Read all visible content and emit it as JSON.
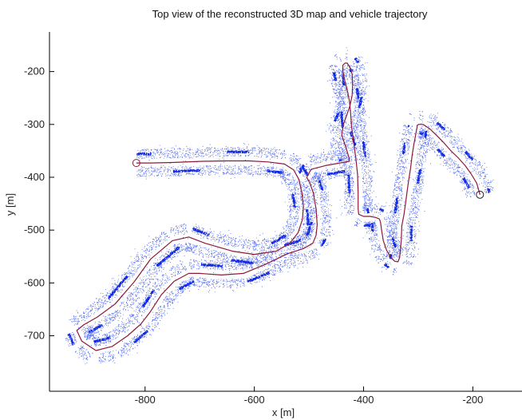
{
  "chart_data": {
    "type": "scatter",
    "title": "Top view of the reconstructed 3D map and vehicle trajectory",
    "xlabel": "x [m]",
    "ylabel": "y [m]",
    "xlim": [
      -975,
      -110
    ],
    "ylim": [
      -805,
      -125
    ],
    "y_axis_inverted": true,
    "grid": false,
    "x_ticks": [
      -800,
      -600,
      -400,
      -200
    ],
    "y_ticks": [
      -200,
      -300,
      -400,
      -500,
      -600,
      -700
    ],
    "x_tick_labels": [
      "-800",
      "-600",
      "-400",
      "-200"
    ],
    "y_tick_labels": [
      "-200",
      "-300",
      "-400",
      "-500",
      "-600",
      "-700"
    ],
    "colors": {
      "trajectory": "#8b1a3a",
      "map_points": "#1f3ee8",
      "axes": "#000000"
    },
    "series": [
      {
        "kind": "line",
        "x": [
          -816,
          -790,
          -750,
          -700,
          -650,
          -610,
          -575,
          -545,
          -528,
          -518,
          -513,
          -510,
          -512,
          -520,
          -535,
          -560,
          -600,
          -640,
          -690,
          -720,
          -750,
          -790,
          -820,
          -855,
          -888,
          -912,
          -925,
          -916,
          -890,
          -860,
          -832,
          -808,
          -790,
          -770,
          -747,
          -720,
          -700,
          -660,
          -620,
          -580,
          -540,
          -510,
          -493,
          -487,
          -485,
          -487,
          -492,
          -498,
          -504,
          -496,
          -470,
          -438,
          -426,
          -426,
          -432,
          -440,
          -437,
          -431,
          -425,
          -421,
          -420,
          -421,
          -425,
          -430,
          -434,
          -438,
          -438,
          -435,
          -430,
          -426,
          -424,
          -422,
          -418,
          -414,
          -411,
          -410,
          -410,
          -409,
          -400,
          -388,
          -378,
          -371,
          -369,
          -367,
          -364,
          -358,
          -350,
          -343,
          -337,
          -334,
          -331,
          -330,
          -326,
          -322,
          -318,
          -314,
          -311,
          -308,
          -305,
          -303,
          -302,
          -302,
          -299,
          -291,
          -278,
          -265,
          -252,
          -240,
          -227,
          -214,
          -203,
          -193,
          -189,
          -187
        ],
        "y": [
          -373,
          -373,
          -372,
          -370,
          -369,
          -369,
          -371,
          -375,
          -386,
          -405,
          -430,
          -455,
          -480,
          -505,
          -525,
          -540,
          -546,
          -540,
          -525,
          -513,
          -520,
          -555,
          -598,
          -640,
          -665,
          -679,
          -690,
          -710,
          -728,
          -720,
          -700,
          -678,
          -654,
          -622,
          -597,
          -582,
          -582,
          -585,
          -582,
          -565,
          -545,
          -535,
          -525,
          -510,
          -490,
          -460,
          -430,
          -412,
          -400,
          -385,
          -378,
          -372,
          -370,
          -365,
          -345,
          -320,
          -300,
          -283,
          -265,
          -245,
          -225,
          -205,
          -192,
          -184,
          -184,
          -188,
          -198,
          -215,
          -235,
          -255,
          -275,
          -305,
          -335,
          -365,
          -395,
          -430,
          -460,
          -470,
          -474,
          -474,
          -476,
          -479,
          -485,
          -500,
          -520,
          -538,
          -552,
          -559,
          -560,
          -552,
          -520,
          -492,
          -470,
          -440,
          -410,
          -383,
          -358,
          -338,
          -322,
          -310,
          -305,
          -302,
          -300,
          -300,
          -309,
          -322,
          -336,
          -350,
          -363,
          -378,
          -394,
          -411,
          -425,
          -433
        ],
        "start_marker": [
          -816,
          -373
        ],
        "end_marker": [
          -187,
          -433
        ]
      },
      {
        "kind": "points",
        "description_free": true,
        "lateral_offset_m": 17,
        "spread_m": 9
      }
    ]
  }
}
